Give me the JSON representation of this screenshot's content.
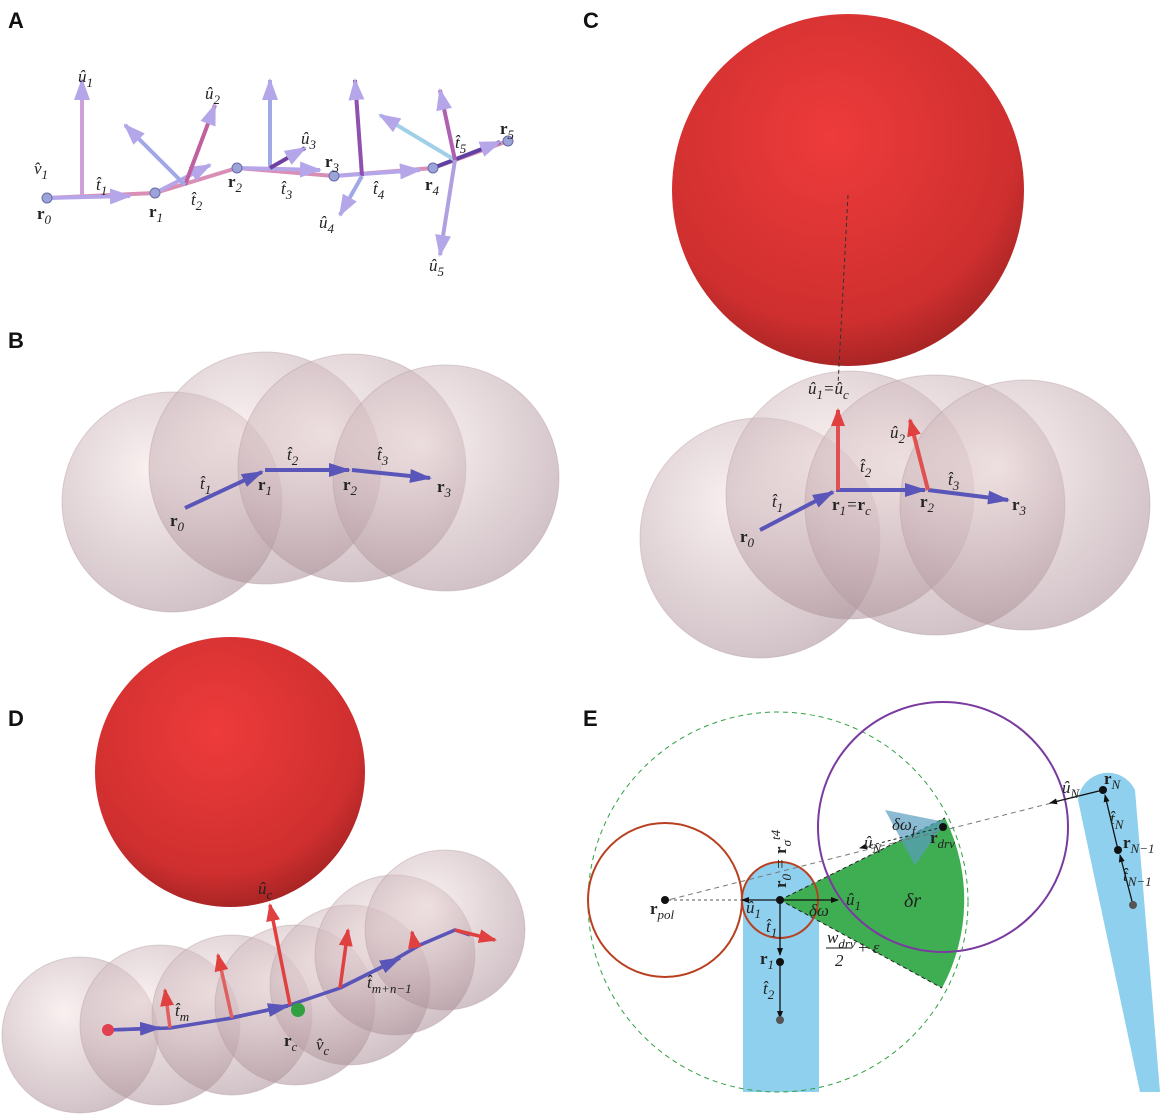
{
  "panels": [
    {
      "letter": "A",
      "labels": [
        {
          "parts": [
            {
              "t": "û",
              "sub": "1"
            }
          ]
        },
        {
          "parts": [
            {
              "t": "v̂",
              "sub": "1"
            }
          ]
        },
        {
          "parts": [
            {
              "t": "t̂",
              "sub": "1"
            }
          ]
        },
        {
          "parts": [
            {
              "t": "û",
              "sub": "2"
            }
          ]
        },
        {
          "parts": [
            {
              "t": "t̂",
              "sub": "2"
            }
          ]
        },
        {
          "parts": [
            {
              "t": "r",
              "sub": "2"
            }
          ]
        },
        {
          "parts": [
            {
              "t": "û",
              "sub": "3"
            }
          ]
        },
        {
          "parts": [
            {
              "t": "r",
              "sub": "3"
            }
          ]
        },
        {
          "parts": [
            {
              "t": "t̂",
              "sub": "3"
            }
          ]
        },
        {
          "parts": [
            {
              "t": "t̂",
              "sub": "4"
            }
          ]
        },
        {
          "parts": [
            {
              "t": "r",
              "sub": "4"
            }
          ]
        },
        {
          "parts": [
            {
              "t": "t̂",
              "sub": "5"
            }
          ]
        },
        {
          "parts": [
            {
              "t": "r",
              "sub": "5"
            }
          ]
        },
        {
          "parts": [
            {
              "t": "û",
              "sub": "4"
            }
          ]
        },
        {
          "parts": [
            {
              "t": "û",
              "sub": "5"
            }
          ]
        },
        {
          "parts": [
            {
              "t": "r",
              "sub": "0"
            }
          ]
        },
        {
          "parts": [
            {
              "t": "r",
              "sub": "1"
            }
          ]
        }
      ]
    },
    {
      "letter": "B",
      "labels": [
        {
          "parts": [
            {
              "t": "t̂",
              "sub": "1"
            }
          ]
        },
        {
          "parts": [
            {
              "t": "t̂",
              "sub": "2"
            }
          ]
        },
        {
          "parts": [
            {
              "t": "t̂",
              "sub": "3"
            }
          ]
        },
        {
          "parts": [
            {
              "t": "r",
              "sub": "0"
            }
          ]
        },
        {
          "parts": [
            {
              "t": "r",
              "sub": "1"
            }
          ]
        },
        {
          "parts": [
            {
              "t": "r",
              "sub": "2"
            }
          ]
        },
        {
          "parts": [
            {
              "t": "r",
              "sub": "3"
            }
          ]
        }
      ]
    },
    {
      "letter": "C",
      "labels": [
        {
          "parts": [
            {
              "t": "û",
              "sub": "1"
            },
            {
              "t": "="
            },
            {
              "t": "û",
              "sub": "c"
            }
          ]
        },
        {
          "parts": [
            {
              "t": "û",
              "sub": "2"
            }
          ]
        },
        {
          "parts": [
            {
              "t": "t̂",
              "sub": "2"
            }
          ]
        },
        {
          "parts": [
            {
              "t": "t̂",
              "sub": "3"
            }
          ]
        },
        {
          "parts": [
            {
              "t": "t̂",
              "sub": "1"
            }
          ]
        },
        {
          "parts": [
            {
              "t": "r",
              "sub": "0"
            }
          ]
        },
        {
          "parts": [
            {
              "t": "r",
              "sub": "1"
            },
            {
              "t": "="
            },
            {
              "t": "r",
              "sub": "c"
            }
          ]
        },
        {
          "parts": [
            {
              "t": "r",
              "sub": "2"
            }
          ]
        },
        {
          "parts": [
            {
              "t": "r",
              "sub": "3"
            }
          ]
        }
      ]
    },
    {
      "letter": "D",
      "labels": [
        {
          "parts": [
            {
              "t": "û",
              "sub": "c"
            }
          ]
        },
        {
          "parts": [
            {
              "t": "t̂",
              "sub": "m"
            }
          ]
        },
        {
          "parts": [
            {
              "t": "r",
              "sub": "c"
            }
          ]
        },
        {
          "parts": [
            {
              "t": "v̂",
              "sub": "c"
            }
          ]
        },
        {
          "parts": [
            {
              "t": "t̂",
              "sub": "m+n−1"
            }
          ]
        }
      ]
    },
    {
      "letter": "E",
      "labels": [
        {
          "parts": [
            {
              "t": "r",
              "sub": "pol"
            }
          ]
        },
        {
          "parts": [
            {
              "t": "û",
              "sub": "1"
            }
          ]
        },
        {
          "parts": [
            {
              "t": "û",
              "sub": "1"
            }
          ]
        },
        {
          "parts": [
            {
              "t": "t̂",
              "sub": "1"
            }
          ]
        },
        {
          "parts": [
            {
              "t": "r",
              "sub": "1"
            }
          ]
        },
        {
          "parts": [
            {
              "t": "t̂",
              "sub": "2"
            }
          ]
        },
        {
          "parts": [
            {
              "t": "δω"
            }
          ]
        },
        {
          "parts": [
            {
              "t": "δr"
            }
          ]
        },
        {
          "parts": [
            {
              "t": "w",
              "sub": "drv"
            }
          ]
        },
        {
          "parts": [
            {
              "t": "2"
            }
          ]
        },
        {
          "parts": [
            {
              "t": "+ ε"
            }
          ]
        },
        {
          "parts": [
            {
              "t": "r",
              "sub": "0"
            },
            {
              "t": " = "
            },
            {
              "t": "r",
              "sub": "σ",
              "sup": "t4"
            }
          ]
        },
        {
          "parts": [
            {
              "t": "δω",
              "sub": "f"
            }
          ]
        },
        {
          "parts": [
            {
              "t": "r",
              "sub": "drv"
            }
          ]
        },
        {
          "parts": [
            {
              "t": "û",
              "sub": "N"
            }
          ]
        },
        {
          "parts": [
            {
              "t": "û",
              "sub": "N"
            }
          ]
        },
        {
          "parts": [
            {
              "t": "r",
              "sub": "N"
            }
          ]
        },
        {
          "parts": [
            {
              "t": "t̂",
              "sub": "N"
            }
          ]
        },
        {
          "parts": [
            {
              "t": "r",
              "sub": "N−1"
            }
          ]
        },
        {
          "parts": [
            {
              "t": "t̂",
              "sub": "N−1"
            }
          ]
        }
      ]
    }
  ]
}
